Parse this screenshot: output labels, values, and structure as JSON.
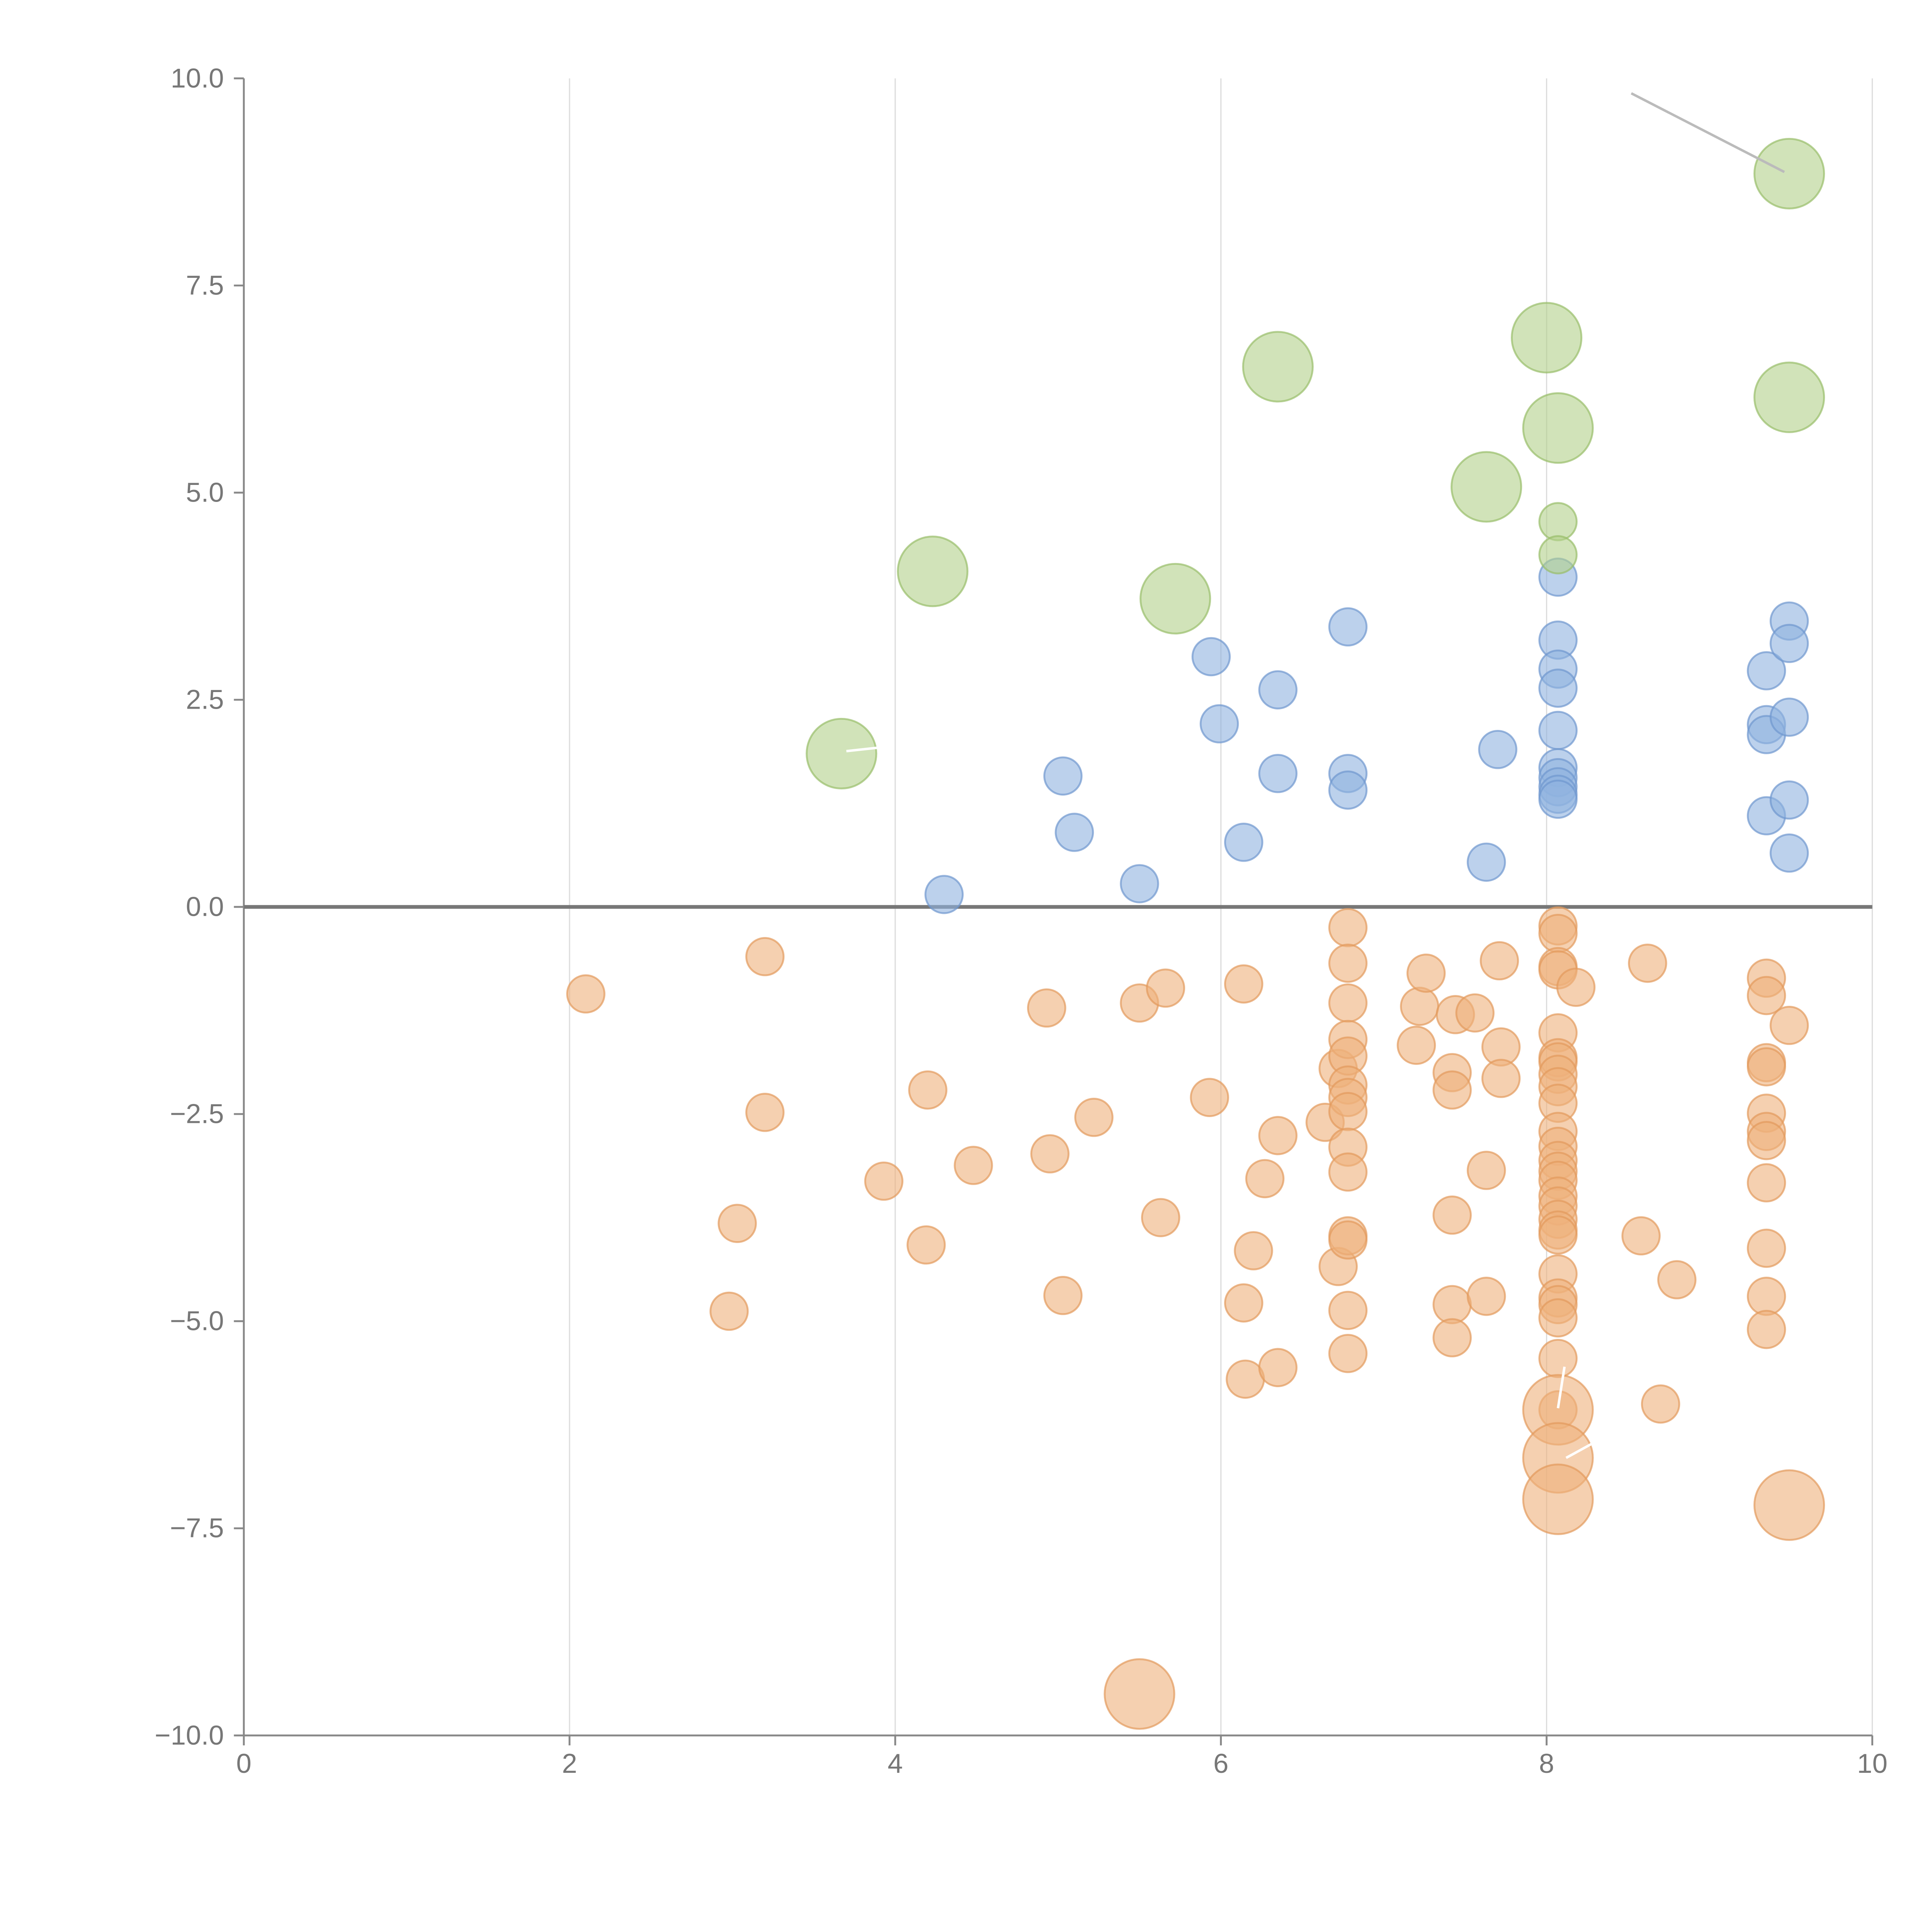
{
  "chart_data": {
    "type": "scatter",
    "title": "",
    "xlabel": "",
    "ylabel": "",
    "xlim": [
      0,
      10
    ],
    "ylim": [
      -10,
      10
    ],
    "x_ticks": [
      "0",
      "2",
      "4",
      "6",
      "8",
      "10"
    ],
    "x_tick_values": [
      0,
      2,
      4,
      6,
      8,
      10
    ],
    "y_ticks": [
      "10.0",
      "7.5",
      "5.0",
      "2.5",
      "0.0",
      "−2.5",
      "−5.0",
      "−7.5",
      "−10.0"
    ],
    "y_tick_values": [
      10,
      7.5,
      5,
      2.5,
      0,
      -2.5,
      -5,
      -7.5,
      -10
    ],
    "grid": "vertical",
    "legend": "none",
    "zero_line": true,
    "colors": {
      "positive": "#8fb3df",
      "negative": "#eeb07b",
      "highlight": "#b3d18b",
      "positive_stroke": "#6f97cf",
      "negative_stroke": "#e39a5c",
      "highlight_stroke": "#98be6a",
      "axis": "#888888",
      "zero_line": "#777777",
      "grid": "#dddddd",
      "callout": "#bbbbbb"
    },
    "series": [
      {
        "kind": "positive",
        "size": "small",
        "points": [
          [
            4.3,
            0.15
          ],
          [
            5.03,
            1.58
          ],
          [
            5.1,
            0.9
          ],
          [
            5.5,
            0.28
          ],
          [
            5.94,
            3.02
          ],
          [
            5.99,
            2.21
          ],
          [
            6.14,
            0.78
          ],
          [
            6.35,
            2.62
          ],
          [
            6.35,
            1.61
          ],
          [
            6.78,
            3.38
          ],
          [
            6.78,
            1.61
          ],
          [
            6.78,
            1.41
          ],
          [
            7.63,
            0.54
          ],
          [
            7.7,
            1.9
          ],
          [
            8.07,
            3.98
          ],
          [
            8.07,
            3.22
          ],
          [
            8.07,
            2.87
          ],
          [
            8.07,
            2.64
          ],
          [
            8.07,
            2.13
          ],
          [
            8.07,
            1.68
          ],
          [
            8.07,
            1.56
          ],
          [
            8.07,
            1.45
          ],
          [
            8.07,
            1.36
          ],
          [
            8.07,
            1.3
          ],
          [
            9.35,
            2.85
          ],
          [
            9.35,
            2.2
          ],
          [
            9.35,
            2.08
          ],
          [
            9.35,
            1.1
          ],
          [
            9.49,
            3.45
          ],
          [
            9.49,
            3.18
          ],
          [
            9.49,
            2.29
          ],
          [
            9.49,
            1.29
          ],
          [
            9.49,
            0.65
          ]
        ]
      },
      {
        "kind": "negative",
        "size": "small",
        "points": [
          [
            2.1,
            -1.05
          ],
          [
            3.2,
            -0.6
          ],
          [
            3.2,
            -2.48
          ],
          [
            3.03,
            -3.82
          ],
          [
            2.98,
            -4.88
          ],
          [
            3.93,
            -3.31
          ],
          [
            4.2,
            -2.21
          ],
          [
            4.19,
            -4.08
          ],
          [
            4.48,
            -3.12
          ],
          [
            4.93,
            -1.22
          ],
          [
            4.95,
            -2.98
          ],
          [
            5.03,
            -4.69
          ],
          [
            5.22,
            -2.54
          ],
          [
            5.5,
            -1.16
          ],
          [
            5.66,
            -0.98
          ],
          [
            5.63,
            -3.75
          ],
          [
            5.93,
            -2.3
          ],
          [
            6.14,
            -0.93
          ],
          [
            6.14,
            -4.78
          ],
          [
            6.15,
            -5.7
          ],
          [
            6.2,
            -4.15
          ],
          [
            6.27,
            -3.28
          ],
          [
            6.35,
            -2.76
          ],
          [
            6.35,
            -5.56
          ],
          [
            6.64,
            -2.6
          ],
          [
            6.72,
            -1.95
          ],
          [
            6.72,
            -4.34
          ],
          [
            6.78,
            -0.25
          ],
          [
            6.78,
            -0.68
          ],
          [
            6.78,
            -1.16
          ],
          [
            6.78,
            -1.6
          ],
          [
            6.78,
            -1.8
          ],
          [
            6.78,
            -2.15
          ],
          [
            6.78,
            -2.3
          ],
          [
            6.78,
            -2.47
          ],
          [
            6.78,
            -2.9
          ],
          [
            6.78,
            -3.2
          ],
          [
            6.78,
            -3.97
          ],
          [
            6.78,
            -4.02
          ],
          [
            6.78,
            -4.87
          ],
          [
            6.78,
            -5.39
          ],
          [
            7.2,
            -1.67
          ],
          [
            7.22,
            -1.2
          ],
          [
            7.26,
            -0.8
          ],
          [
            7.42,
            -2.0
          ],
          [
            7.42,
            -2.21
          ],
          [
            7.42,
            -3.72
          ],
          [
            7.42,
            -4.8
          ],
          [
            7.42,
            -5.2
          ],
          [
            7.44,
            -1.3
          ],
          [
            7.56,
            -1.28
          ],
          [
            7.63,
            -3.18
          ],
          [
            7.63,
            -4.7
          ],
          [
            7.71,
            -0.65
          ],
          [
            7.72,
            -1.69
          ],
          [
            7.72,
            -2.07
          ],
          [
            8.07,
            -0.23
          ],
          [
            8.07,
            -0.32
          ],
          [
            8.07,
            -0.72
          ],
          [
            8.07,
            -0.76
          ],
          [
            8.07,
            -1.52
          ],
          [
            8.07,
            -1.82
          ],
          [
            8.07,
            -1.87
          ],
          [
            8.07,
            -2.02
          ],
          [
            8.07,
            -2.17
          ],
          [
            8.07,
            -2.37
          ],
          [
            8.07,
            -2.71
          ],
          [
            8.07,
            -2.89
          ],
          [
            8.07,
            -3.06
          ],
          [
            8.07,
            -3.19
          ],
          [
            8.07,
            -3.3
          ],
          [
            8.07,
            -3.49
          ],
          [
            8.07,
            -3.61
          ],
          [
            8.07,
            -3.77
          ],
          [
            8.07,
            -3.9
          ],
          [
            8.07,
            -3.96
          ],
          [
            8.07,
            -4.43
          ],
          [
            8.07,
            -4.72
          ],
          [
            8.07,
            -4.8
          ],
          [
            8.07,
            -4.96
          ],
          [
            8.07,
            -5.45
          ],
          [
            8.07,
            -6.07
          ],
          [
            8.18,
            -0.97
          ],
          [
            8.58,
            -3.97
          ],
          [
            8.62,
            -0.68
          ],
          [
            8.7,
            -6.0
          ],
          [
            8.8,
            -4.5
          ],
          [
            9.35,
            -0.86
          ],
          [
            9.35,
            -1.07
          ],
          [
            9.35,
            -1.88
          ],
          [
            9.35,
            -1.93
          ],
          [
            9.35,
            -2.49
          ],
          [
            9.35,
            -2.71
          ],
          [
            9.35,
            -2.82
          ],
          [
            9.35,
            -3.33
          ],
          [
            9.35,
            -4.12
          ],
          [
            9.35,
            -4.7
          ],
          [
            9.35,
            -5.1
          ],
          [
            9.49,
            -1.43
          ]
        ]
      },
      {
        "kind": "highlight",
        "size": "small",
        "points": [
          [
            8.07,
            4.65
          ],
          [
            8.07,
            4.25
          ]
        ]
      },
      {
        "kind": "highlight",
        "size": "large",
        "points": [
          [
            3.67,
            1.85
          ],
          [
            4.23,
            4.05
          ],
          [
            5.72,
            3.72
          ],
          [
            6.35,
            6.52
          ],
          [
            7.63,
            5.07
          ],
          [
            8.0,
            6.87
          ],
          [
            8.07,
            5.78
          ],
          [
            9.49,
            8.85
          ],
          [
            9.49,
            6.15
          ]
        ]
      },
      {
        "kind": "negative",
        "size": "large",
        "points": [
          [
            5.5,
            -9.5
          ],
          [
            8.07,
            -6.07
          ],
          [
            8.07,
            -6.65
          ],
          [
            8.07,
            -7.15
          ],
          [
            9.49,
            -7.22
          ]
        ]
      }
    ],
    "callouts": [
      {
        "from": [
          8.52,
          9.82
        ],
        "to": [
          9.46,
          8.87
        ]
      },
      {
        "from": [
          3.7,
          1.88
        ],
        "to": [
          3.98,
          1.94
        ]
      },
      {
        "from": [
          8.07,
          -6.05
        ],
        "to": [
          8.11,
          -5.55
        ]
      },
      {
        "from": [
          8.12,
          -6.65
        ],
        "to": [
          8.37,
          -6.38
        ]
      }
    ]
  }
}
